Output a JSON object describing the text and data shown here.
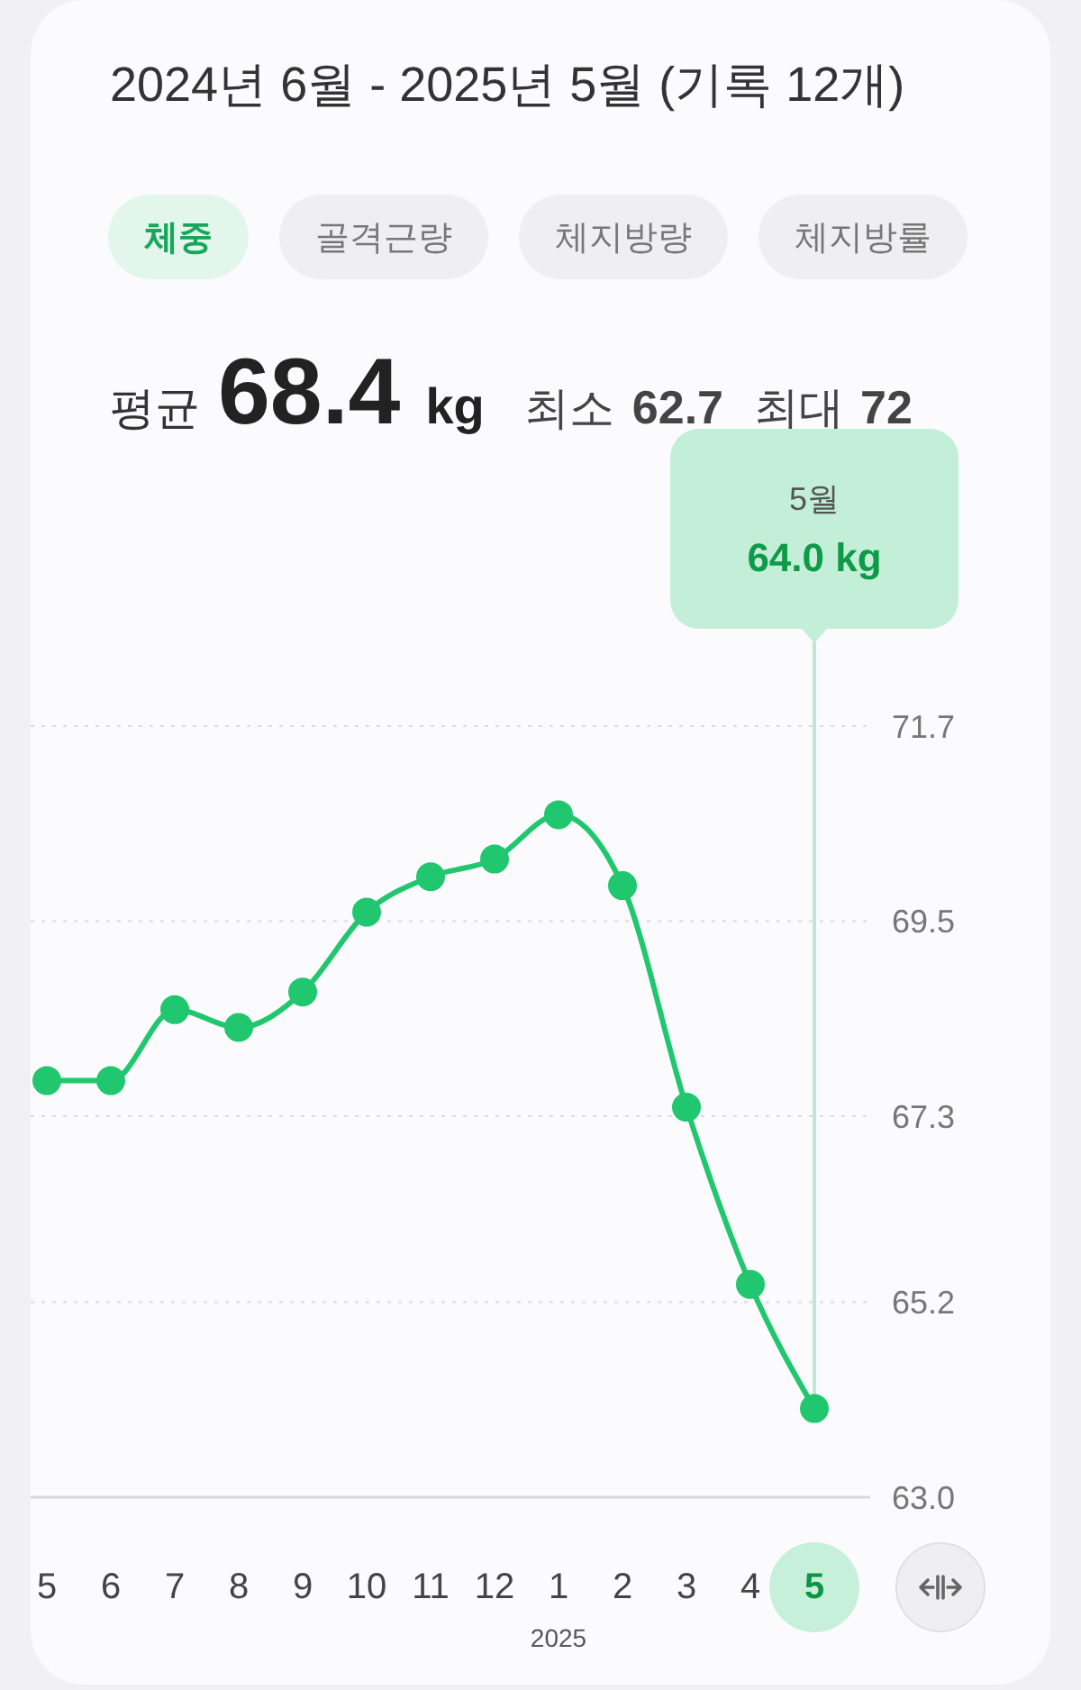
{
  "chart_data": {
    "type": "line",
    "title": "2024년 6월 - 2025년 5월 (기록 12개)",
    "categories": [
      "5",
      "6",
      "7",
      "8",
      "9",
      "10",
      "11",
      "12",
      "1",
      "2",
      "3",
      "4",
      "5"
    ],
    "series": [
      {
        "color": "#20c76f",
        "values": [
          67.7,
          67.7,
          68.5,
          68.3,
          68.7,
          69.6,
          70.0,
          70.2,
          70.7,
          69.9,
          67.4,
          65.4,
          64.0
        ]
      }
    ],
    "ylim": [
      63.0,
      71.7
    ],
    "yticks": [
      {
        "value": 63,
        "label": "63.0"
      },
      65.2,
      67.3,
      69.5,
      71.7
    ],
    "grid": "y",
    "marker": "circle",
    "line_style": "solid",
    "annotations": [
      "체중",
      "골격근량",
      "체지방량",
      "체지방률",
      "평균",
      "68.4",
      "kg",
      "최소",
      "62.7",
      "최대",
      "72",
      "2025",
      "5월",
      "64.0 kg"
    ]
  }
}
